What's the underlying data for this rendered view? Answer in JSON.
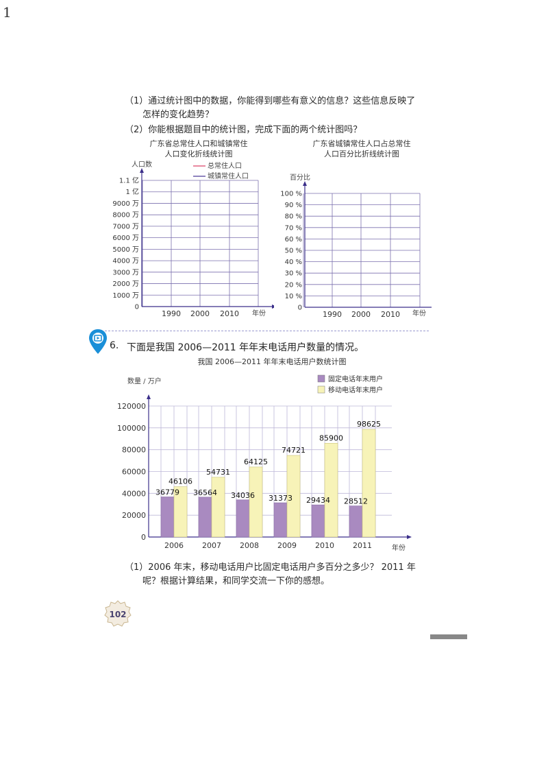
{
  "page": {
    "corner_number": "1",
    "questions_top": [
      {
        "line1": "（1）通过统计图中的数据，你能得到哪些有意义的信息？这些信息反映了",
        "line2": "怎样的变化趋势？"
      },
      {
        "line1": "（2）你能根据题目中的统计图，完成下面的两个统计图吗？"
      }
    ],
    "problem6": {
      "number": "6.",
      "text": "下面是我国 2006—2011 年年末电话用户数量的情况。"
    },
    "questions_bottom": [
      {
        "line1": "（1）2006 年末，移动电话用户比固定电话用户多百分之多少？ 2011 年",
        "line2": "呢？根据计算结果，和同学交流一下你的感想。"
      }
    ],
    "page_number": "102"
  },
  "chart_data": [
    {
      "type": "line",
      "title_line1": "广东省总常住人口和城镇常住",
      "title_line2": "人口变化折线统计图",
      "ylabel": "人口数",
      "xlabel": "年份",
      "legend": [
        {
          "name": "总常住人口",
          "color": "#e06080"
        },
        {
          "name": "城镇常住人口",
          "color": "#6a5aa8"
        }
      ],
      "y_ticks": [
        "0",
        "1000 万",
        "2000 万",
        "3000 万",
        "4000 万",
        "5000 万",
        "6000 万",
        "7000 万",
        "8000 万",
        "9000 万",
        "1 亿",
        "1.1 亿"
      ],
      "x_ticks": [
        "1990",
        "2000",
        "2010"
      ],
      "series": []
    },
    {
      "type": "line",
      "title_line1": "广东省城镇常住人口占总常住",
      "title_line2": "人口百分比折线统计图",
      "ylabel": "百分比",
      "xlabel": "年份",
      "y_ticks": [
        "0",
        "10 %",
        "20 %",
        "30 %",
        "40 %",
        "50 %",
        "60 %",
        "70 %",
        "80 %",
        "90 %",
        "100 %"
      ],
      "x_ticks": [
        "1990",
        "2000",
        "2010"
      ],
      "series": []
    },
    {
      "type": "bar",
      "title": "我国 2006—2011 年年末电话用户数统计图",
      "ylabel": "数量 / 万户",
      "xlabel": "年份",
      "categories": [
        "2006",
        "2007",
        "2008",
        "2009",
        "2010",
        "2011"
      ],
      "ylim": [
        0,
        120000
      ],
      "y_ticks": [
        "0",
        "20000",
        "40000",
        "60000",
        "80000",
        "100000",
        "120000"
      ],
      "series": [
        {
          "name": "固定电话年末用户",
          "color": "#a98ac0",
          "values": [
            36779,
            36564,
            34036,
            31373,
            29434,
            28512
          ]
        },
        {
          "name": "移动电话年末用户",
          "color": "#f7f3b8",
          "values": [
            46106,
            54731,
            64125,
            74721,
            85900,
            98625
          ]
        }
      ],
      "value_labels": {
        "fixed": [
          "36779",
          "36564",
          "34036",
          "31373",
          "29434",
          "28512"
        ],
        "mobile": [
          "46106",
          "54731",
          "64125",
          "74721",
          "85900",
          "98625"
        ]
      }
    }
  ]
}
